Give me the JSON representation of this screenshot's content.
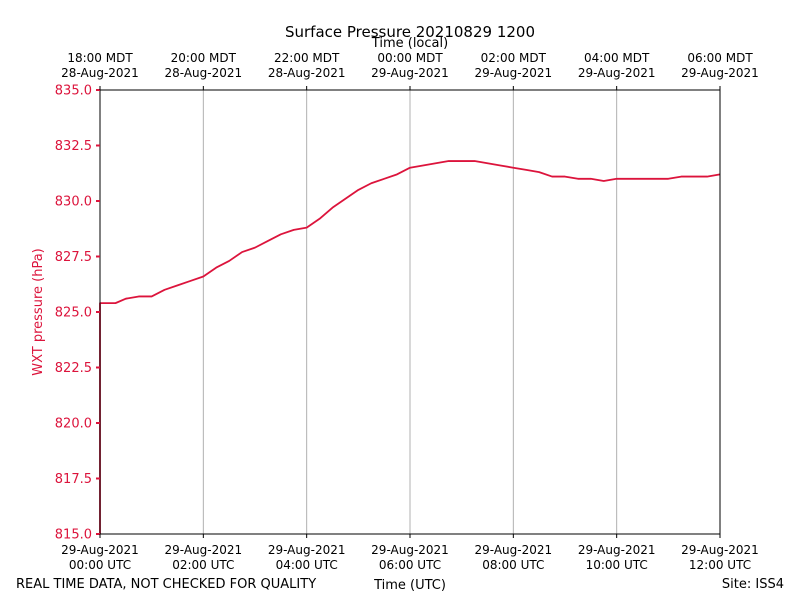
{
  "chart_data": {
    "type": "line",
    "title": "Surface Pressure 20210829 1200",
    "top_axis_label": "Time (local)",
    "xlabel": "Time (UTC)",
    "ylabel": "WXT pressure (hPa)",
    "footer_left": "REAL TIME DATA, NOT CHECKED FOR QUALITY",
    "footer_right": "Site: ISS4",
    "ylim": [
      815.0,
      835.0
    ],
    "xlim_hours": [
      0,
      12
    ],
    "grid": "vertical",
    "series_color": "#dc143c",
    "y_ticks": [
      {
        "value": 815.0,
        "label": "815.0"
      },
      {
        "value": 817.5,
        "label": "817.5"
      },
      {
        "value": 820.0,
        "label": "820.0"
      },
      {
        "value": 822.5,
        "label": "822.5"
      },
      {
        "value": 825.0,
        "label": "825.0"
      },
      {
        "value": 827.5,
        "label": "827.5"
      },
      {
        "value": 830.0,
        "label": "830.0"
      },
      {
        "value": 832.5,
        "label": "832.5"
      },
      {
        "value": 835.0,
        "label": "835.0"
      }
    ],
    "x_ticks": [
      {
        "hour": 0,
        "line1": "29-Aug-2021",
        "line2": "00:00 UTC"
      },
      {
        "hour": 2,
        "line1": "29-Aug-2021",
        "line2": "02:00 UTC"
      },
      {
        "hour": 4,
        "line1": "29-Aug-2021",
        "line2": "04:00 UTC"
      },
      {
        "hour": 6,
        "line1": "29-Aug-2021",
        "line2": "06:00 UTC"
      },
      {
        "hour": 8,
        "line1": "29-Aug-2021",
        "line2": "08:00 UTC"
      },
      {
        "hour": 10,
        "line1": "29-Aug-2021",
        "line2": "10:00 UTC"
      },
      {
        "hour": 12,
        "line1": "29-Aug-2021",
        "line2": "12:00 UTC"
      }
    ],
    "top_ticks": [
      {
        "hour": 0,
        "line1": "18:00 MDT",
        "line2": "28-Aug-2021"
      },
      {
        "hour": 2,
        "line1": "20:00 MDT",
        "line2": "28-Aug-2021"
      },
      {
        "hour": 4,
        "line1": "22:00 MDT",
        "line2": "28-Aug-2021"
      },
      {
        "hour": 6,
        "line1": "00:00 MDT",
        "line2": "29-Aug-2021"
      },
      {
        "hour": 8,
        "line1": "02:00 MDT",
        "line2": "29-Aug-2021"
      },
      {
        "hour": 10,
        "line1": "04:00 MDT",
        "line2": "29-Aug-2021"
      },
      {
        "hour": 12,
        "line1": "06:00 MDT",
        "line2": "29-Aug-2021"
      }
    ],
    "series": [
      {
        "name": "WXT pressure",
        "x_hours": [
          0.0,
          0.0,
          0.3,
          0.5,
          0.75,
          1.0,
          1.25,
          1.5,
          1.75,
          2.0,
          2.25,
          2.5,
          2.75,
          3.0,
          3.25,
          3.5,
          3.75,
          4.0,
          4.25,
          4.5,
          4.75,
          5.0,
          5.25,
          5.5,
          5.75,
          6.0,
          6.25,
          6.5,
          6.75,
          7.0,
          7.25,
          7.5,
          7.75,
          8.0,
          8.25,
          8.5,
          8.75,
          9.0,
          9.25,
          9.5,
          9.75,
          10.0,
          10.25,
          10.5,
          10.75,
          11.0,
          11.25,
          11.5,
          11.75,
          12.0
        ],
        "y": [
          815.0,
          825.4,
          825.4,
          825.6,
          825.7,
          825.7,
          826.0,
          826.2,
          826.4,
          826.6,
          827.0,
          827.3,
          827.7,
          827.9,
          828.2,
          828.5,
          828.7,
          828.8,
          829.2,
          829.7,
          830.1,
          830.5,
          830.8,
          831.0,
          831.2,
          831.5,
          831.6,
          831.7,
          831.8,
          831.8,
          831.8,
          831.7,
          831.6,
          831.5,
          831.4,
          831.3,
          831.1,
          831.1,
          831.0,
          831.0,
          830.9,
          831.0,
          831.0,
          831.0,
          831.0,
          831.0,
          831.1,
          831.1,
          831.1,
          831.2
        ]
      }
    ]
  }
}
